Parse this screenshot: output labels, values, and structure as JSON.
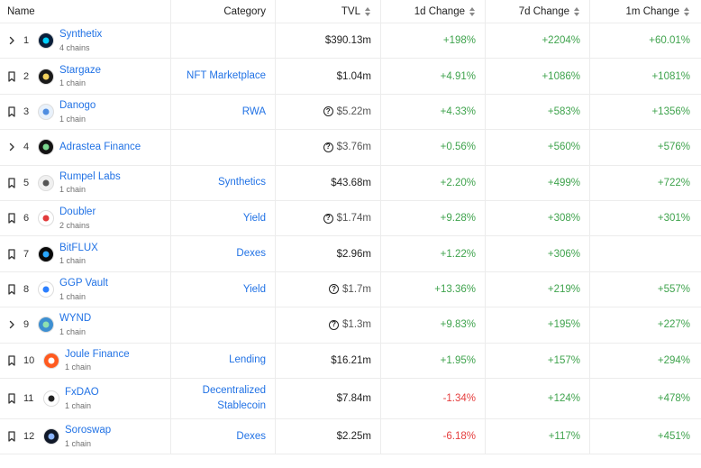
{
  "headers": {
    "name": "Name",
    "category": "Category",
    "tvl": "TVL",
    "d1": "1d Change",
    "d7": "7d Change",
    "m1": "1m Change"
  },
  "rows": [
    {
      "lead_icon": "chevron-right-icon",
      "rank": "1",
      "name": "Synthetix",
      "chains": "4 chains",
      "category": "",
      "tvl": "$390.13m",
      "flag": false,
      "d1": "+198%",
      "d7": "+2204%",
      "m1": "+60.01%",
      "logo_color": "#0b1f3a",
      "logo_accent": "#00d1ff"
    },
    {
      "lead_icon": "bookmark-icon",
      "rank": "2",
      "name": "Stargaze",
      "chains": "1 chain",
      "category": "NFT Marketplace",
      "tvl": "$1.04m",
      "flag": false,
      "d1": "+4.91%",
      "d7": "+1086%",
      "m1": "+1081%",
      "logo_color": "#1a1a1a",
      "logo_accent": "#f4d35e"
    },
    {
      "lead_icon": "bookmark-icon",
      "rank": "3",
      "name": "Danogo",
      "chains": "1 chain",
      "category": "RWA",
      "tvl": "$5.22m",
      "flag": true,
      "d1": "+4.33%",
      "d7": "+583%",
      "m1": "+1356%",
      "logo_color": "#e8f1fb",
      "logo_accent": "#4f8de0"
    },
    {
      "lead_icon": "chevron-right-icon",
      "rank": "4",
      "name": "Adrastea Finance",
      "chains": "",
      "category": "",
      "tvl": "$3.76m",
      "flag": true,
      "d1": "+0.56%",
      "d7": "+560%",
      "m1": "+576%",
      "logo_color": "#141414",
      "logo_accent": "#7bd88f"
    },
    {
      "lead_icon": "bookmark-icon",
      "rank": "5",
      "name": "Rumpel Labs",
      "chains": "1 chain",
      "category": "Synthetics",
      "tvl": "$43.68m",
      "flag": false,
      "d1": "+2.20%",
      "d7": "+499%",
      "m1": "+722%",
      "logo_color": "#f0f0f0",
      "logo_accent": "#555555"
    },
    {
      "lead_icon": "bookmark-icon",
      "rank": "6",
      "name": "Doubler",
      "chains": "2 chains",
      "category": "Yield",
      "tvl": "$1.74m",
      "flag": true,
      "d1": "+9.28%",
      "d7": "+308%",
      "m1": "+301%",
      "logo_color": "#ffffff",
      "logo_accent": "#e23b3b"
    },
    {
      "lead_icon": "bookmark-icon",
      "rank": "7",
      "name": "BitFLUX",
      "chains": "1 chain",
      "category": "Dexes",
      "tvl": "$2.96m",
      "flag": false,
      "d1": "+1.22%",
      "d7": "+306%",
      "m1": "",
      "logo_color": "#0a0a0a",
      "logo_accent": "#2aa7ff"
    },
    {
      "lead_icon": "bookmark-icon",
      "rank": "8",
      "name": "GGP Vault",
      "chains": "1 chain",
      "category": "Yield",
      "tvl": "$1.7m",
      "flag": true,
      "d1": "+13.36%",
      "d7": "+219%",
      "m1": "+557%",
      "logo_color": "#ffffff",
      "logo_accent": "#2b7fff"
    },
    {
      "lead_icon": "chevron-right-icon",
      "rank": "9",
      "name": "WYND",
      "chains": "1 chain",
      "category": "",
      "tvl": "$1.3m",
      "flag": true,
      "d1": "+9.83%",
      "d7": "+195%",
      "m1": "+227%",
      "logo_color": "#3d8fd1",
      "logo_accent": "#8fe0b0"
    },
    {
      "lead_icon": "bookmark-icon",
      "rank": "10",
      "name": "Joule Finance",
      "chains": "1 chain",
      "category": "Lending",
      "tvl": "$16.21m",
      "flag": false,
      "d1": "+1.95%",
      "d7": "+157%",
      "m1": "+294%",
      "logo_color": "#ff5a1f",
      "logo_accent": "#ffffff"
    },
    {
      "lead_icon": "bookmark-icon",
      "rank": "11",
      "name": "FxDAO",
      "chains": "1 chain",
      "category": "Decentralized Stablecoin",
      "tvl": "$7.84m",
      "flag": false,
      "d1": "-1.34%",
      "d7": "+124%",
      "m1": "+478%",
      "logo_color": "#ffffff",
      "logo_accent": "#222222"
    },
    {
      "lead_icon": "bookmark-icon",
      "rank": "12",
      "name": "Soroswap",
      "chains": "1 chain",
      "category": "Dexes",
      "tvl": "$2.25m",
      "flag": false,
      "d1": "-6.18%",
      "d7": "+117%",
      "m1": "+451%",
      "logo_color": "#101828",
      "logo_accent": "#8ab4ff"
    }
  ],
  "flag_glyph": "?",
  "colors": {
    "link": "#2172e5",
    "positive": "#3fa34d",
    "negative": "#e53e3e"
  }
}
